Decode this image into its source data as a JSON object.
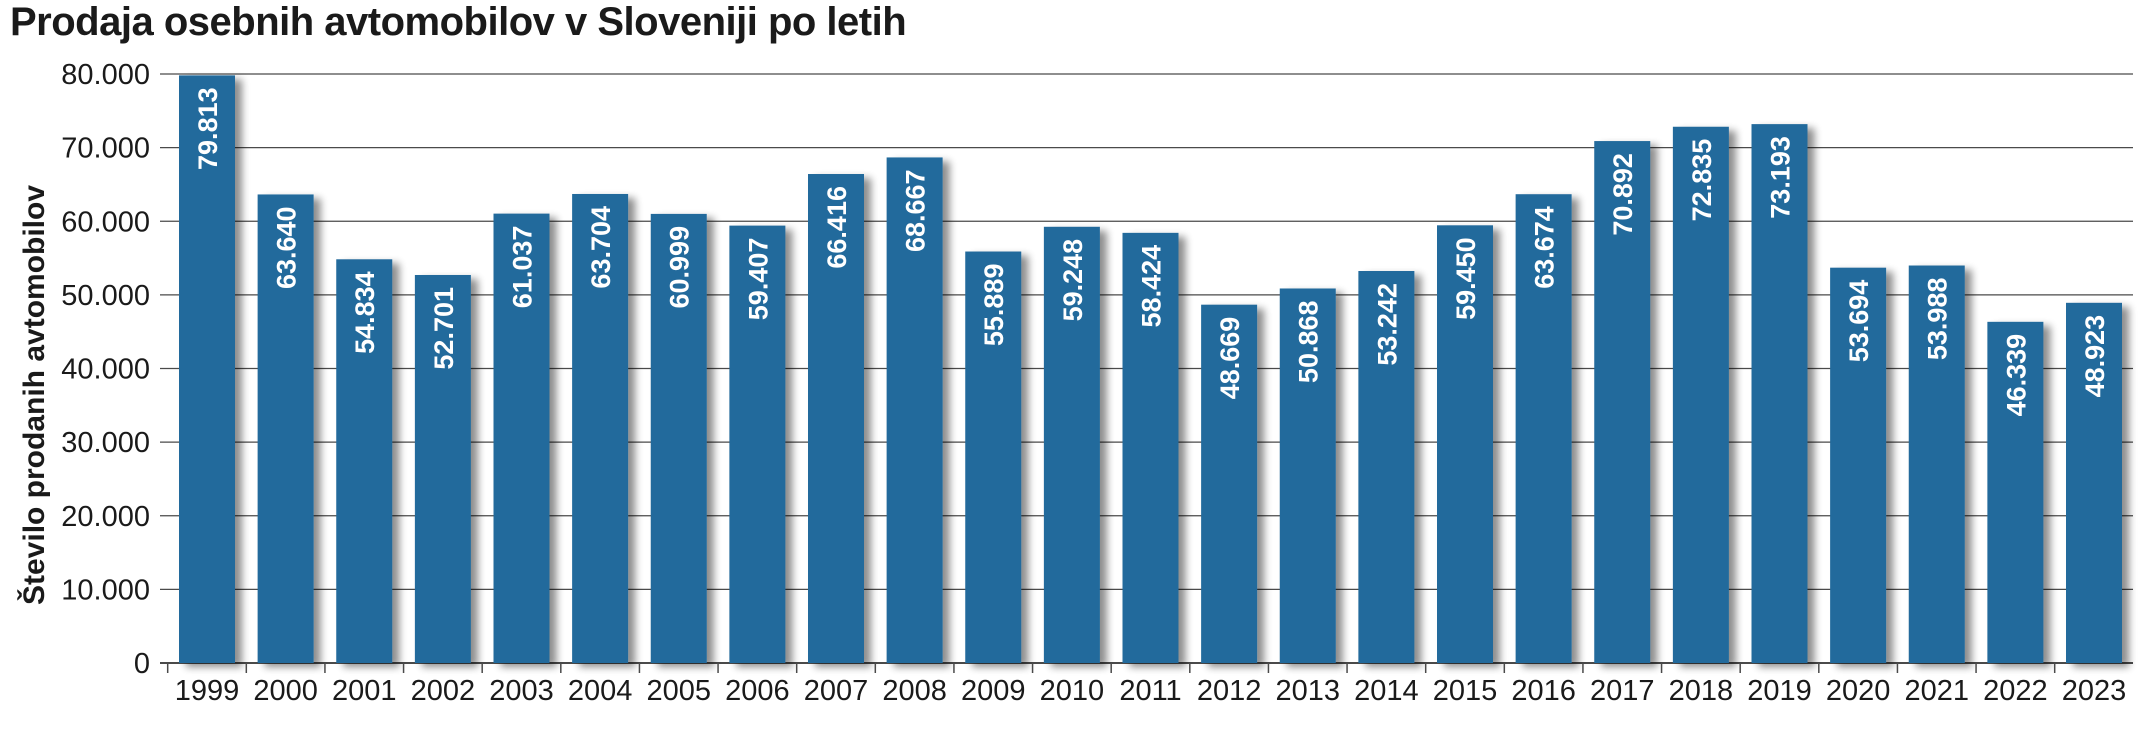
{
  "chart_data": {
    "type": "bar",
    "title": "Prodaja osebnih avtomobilov v Sloveniji po letih",
    "ylabel": "Število prodanih avtomobilov",
    "xlabel": "",
    "ylim": [
      0,
      80000
    ],
    "yticks": [
      0,
      10000,
      20000,
      30000,
      40000,
      50000,
      60000,
      70000,
      80000
    ],
    "ytick_labels": [
      "0",
      "10.000",
      "20.000",
      "30.000",
      "40.000",
      "50.000",
      "60.000",
      "70.000",
      "80.000"
    ],
    "grid": true,
    "categories": [
      "1999",
      "2000",
      "2001",
      "2002",
      "2003",
      "2004",
      "2005",
      "2006",
      "2007",
      "2008",
      "2009",
      "2010",
      "2011",
      "2012",
      "2013",
      "2014",
      "2015",
      "2016",
      "2017",
      "2018",
      "2019",
      "2020",
      "2021",
      "2022",
      "2023"
    ],
    "values": [
      79813,
      63640,
      54834,
      52701,
      61037,
      63704,
      60999,
      59407,
      66416,
      68667,
      55889,
      59248,
      58424,
      48669,
      50868,
      53242,
      59450,
      63674,
      70892,
      72835,
      73193,
      53694,
      53988,
      46339,
      48923
    ],
    "value_labels": [
      "79.813",
      "63.640",
      "54.834",
      "52.701",
      "61.037",
      "63.704",
      "60.999",
      "59.407",
      "66.416",
      "68.667",
      "55.889",
      "59.248",
      "58.424",
      "48.669",
      "50.868",
      "53.242",
      "59.450",
      "63.674",
      "70.892",
      "72.835",
      "73.193",
      "53.694",
      "53.988",
      "46.339",
      "48.923"
    ],
    "colors": {
      "bar": "#236A9C",
      "grid": "#4a4a4a",
      "label": "#ffffff"
    }
  }
}
